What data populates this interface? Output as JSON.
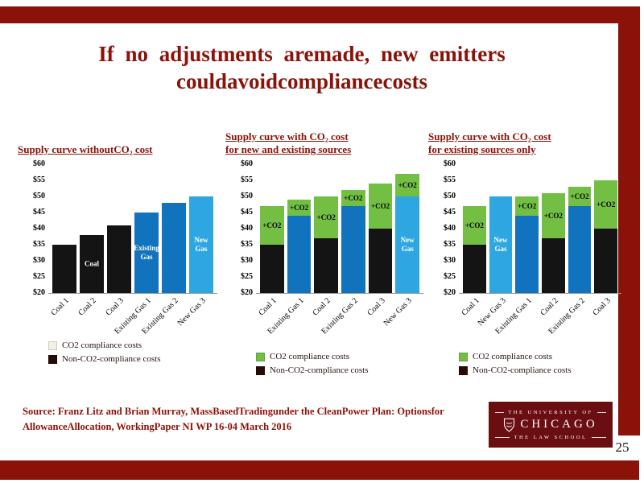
{
  "slide": {
    "title_line1": "If no adjustments  aremade,  new emitters",
    "title_line2": "couldavoidcompliancecosts",
    "page_number": "25",
    "source_line1": "Source: Franz Litz and Brian  Murray, MassBasedTradingunder the CleanPower Plan: Optionsfor",
    "source_line2": "AllowanceAllocation, WorkingPaper NI  WP 16-04 March 2016"
  },
  "logo": {
    "line1": "THE UNIVERSITY OF",
    "line2": "CHICAGO",
    "line3": "THE LAW SCHOOL"
  },
  "colors": {
    "maroon": "#8b1209",
    "logo_bg": "#6b0e11",
    "coal": "#141414",
    "existing_gas": "#1173bd",
    "new_gas": "#2ea7e0",
    "co2_green": "#72bf44",
    "legend_co2_light": "#f2efe3",
    "legend_non_co2": "#260b07"
  },
  "chart_data": [
    {
      "type": "bar",
      "stacked": true,
      "title_lines": [
        "Supply curve withoutCO₂ cost"
      ],
      "ylim": [
        20,
        60
      ],
      "yticks": [
        "$60",
        "$55",
        "$50",
        "$45",
        "$40",
        "$35",
        "$30",
        "$25",
        "$20"
      ],
      "categories": [
        "Coal 1",
        "Coal 2",
        "Coal 3",
        "Existing Gas 1",
        "Existing Gas 2",
        "New Gas 3"
      ],
      "series": [
        {
          "name": "Non-CO2-compliance costs",
          "values": [
            35,
            38,
            41,
            45,
            48,
            50
          ],
          "colors": [
            "coal",
            "coal",
            "coal",
            "existing_gas",
            "existing_gas",
            "new_gas"
          ]
        },
        {
          "name": "CO2 compliance costs",
          "values": [
            0,
            0,
            0,
            0,
            0,
            0
          ],
          "color": "co2_green"
        }
      ],
      "base_labels": [
        "",
        "Coal",
        "",
        "Existing\nGas",
        "",
        "New\nGas"
      ],
      "co2_labels": [
        "",
        "",
        "",
        "",
        "",
        ""
      ],
      "legend": [
        {
          "label": "CO2 compliance costs",
          "swatch_key": "legend_co2_light"
        },
        {
          "label": "Non-CO2-compliance costs",
          "swatch_key": "legend_non_co2"
        }
      ]
    },
    {
      "type": "bar",
      "stacked": true,
      "title_lines": [
        "Supply curve with CO₂ cost",
        "for new and existing sources"
      ],
      "ylim": [
        20,
        60
      ],
      "yticks": [
        "$60",
        "$55",
        "$50",
        "$45",
        "$40",
        "$35",
        "$30",
        "$25",
        "$20"
      ],
      "categories": [
        "Coal 1",
        "Existing Gas 1",
        "Coal 2",
        "Existing Gas 2",
        "Coal 3",
        "New Gas 3"
      ],
      "series": [
        {
          "name": "Non-CO2-compliance costs",
          "values": [
            35,
            44,
            37,
            47,
            40,
            50
          ],
          "colors": [
            "coal",
            "existing_gas",
            "coal",
            "existing_gas",
            "coal",
            "new_gas"
          ]
        },
        {
          "name": "CO2 compliance costs",
          "values": [
            12,
            5,
            13,
            5,
            14,
            7
          ],
          "color": "co2_green"
        }
      ],
      "base_labels": [
        "",
        "",
        "",
        "",
        "",
        "New\nGas"
      ],
      "co2_labels": [
        "+CO2",
        "+CO2",
        "+CO2",
        "+CO2",
        "+CO2",
        "+CO2"
      ],
      "legend": [
        {
          "label": "CO2 compliance costs",
          "swatch_key": "co2_green"
        },
        {
          "label": "Non-CO2-compliance costs",
          "swatch_key": "legend_non_co2"
        }
      ]
    },
    {
      "type": "bar",
      "stacked": true,
      "title_lines": [
        "Supply curve with CO₂ cost",
        "for existing sources only"
      ],
      "ylim": [
        20,
        60
      ],
      "yticks": [
        "$60",
        "$55",
        "$50",
        "$45",
        "$40",
        "$35",
        "$30",
        "$25",
        "$20"
      ],
      "categories": [
        "Coal 1",
        "New Gas 3",
        "Existing Gas 1",
        "Coal 2",
        "Existing Gas 2",
        "Coal 3"
      ],
      "series": [
        {
          "name": "Non-CO2-compliance costs",
          "values": [
            35,
            50,
            44,
            37,
            47,
            40
          ],
          "colors": [
            "coal",
            "new_gas",
            "existing_gas",
            "coal",
            "existing_gas",
            "coal"
          ]
        },
        {
          "name": "CO2 compliance costs",
          "values": [
            12,
            0,
            6,
            14,
            6,
            15
          ],
          "color": "co2_green"
        }
      ],
      "base_labels": [
        "",
        "New\nGas",
        "",
        "",
        "",
        ""
      ],
      "co2_labels": [
        "+CO2",
        "",
        "+CO2",
        "+CO2",
        "+CO2",
        "+CO2"
      ],
      "legend": [
        {
          "label": "CO2 compliance costs",
          "swatch_key": "co2_green"
        },
        {
          "label": "Non-CO2-compliance costs",
          "swatch_key": "legend_non_co2"
        }
      ]
    }
  ]
}
